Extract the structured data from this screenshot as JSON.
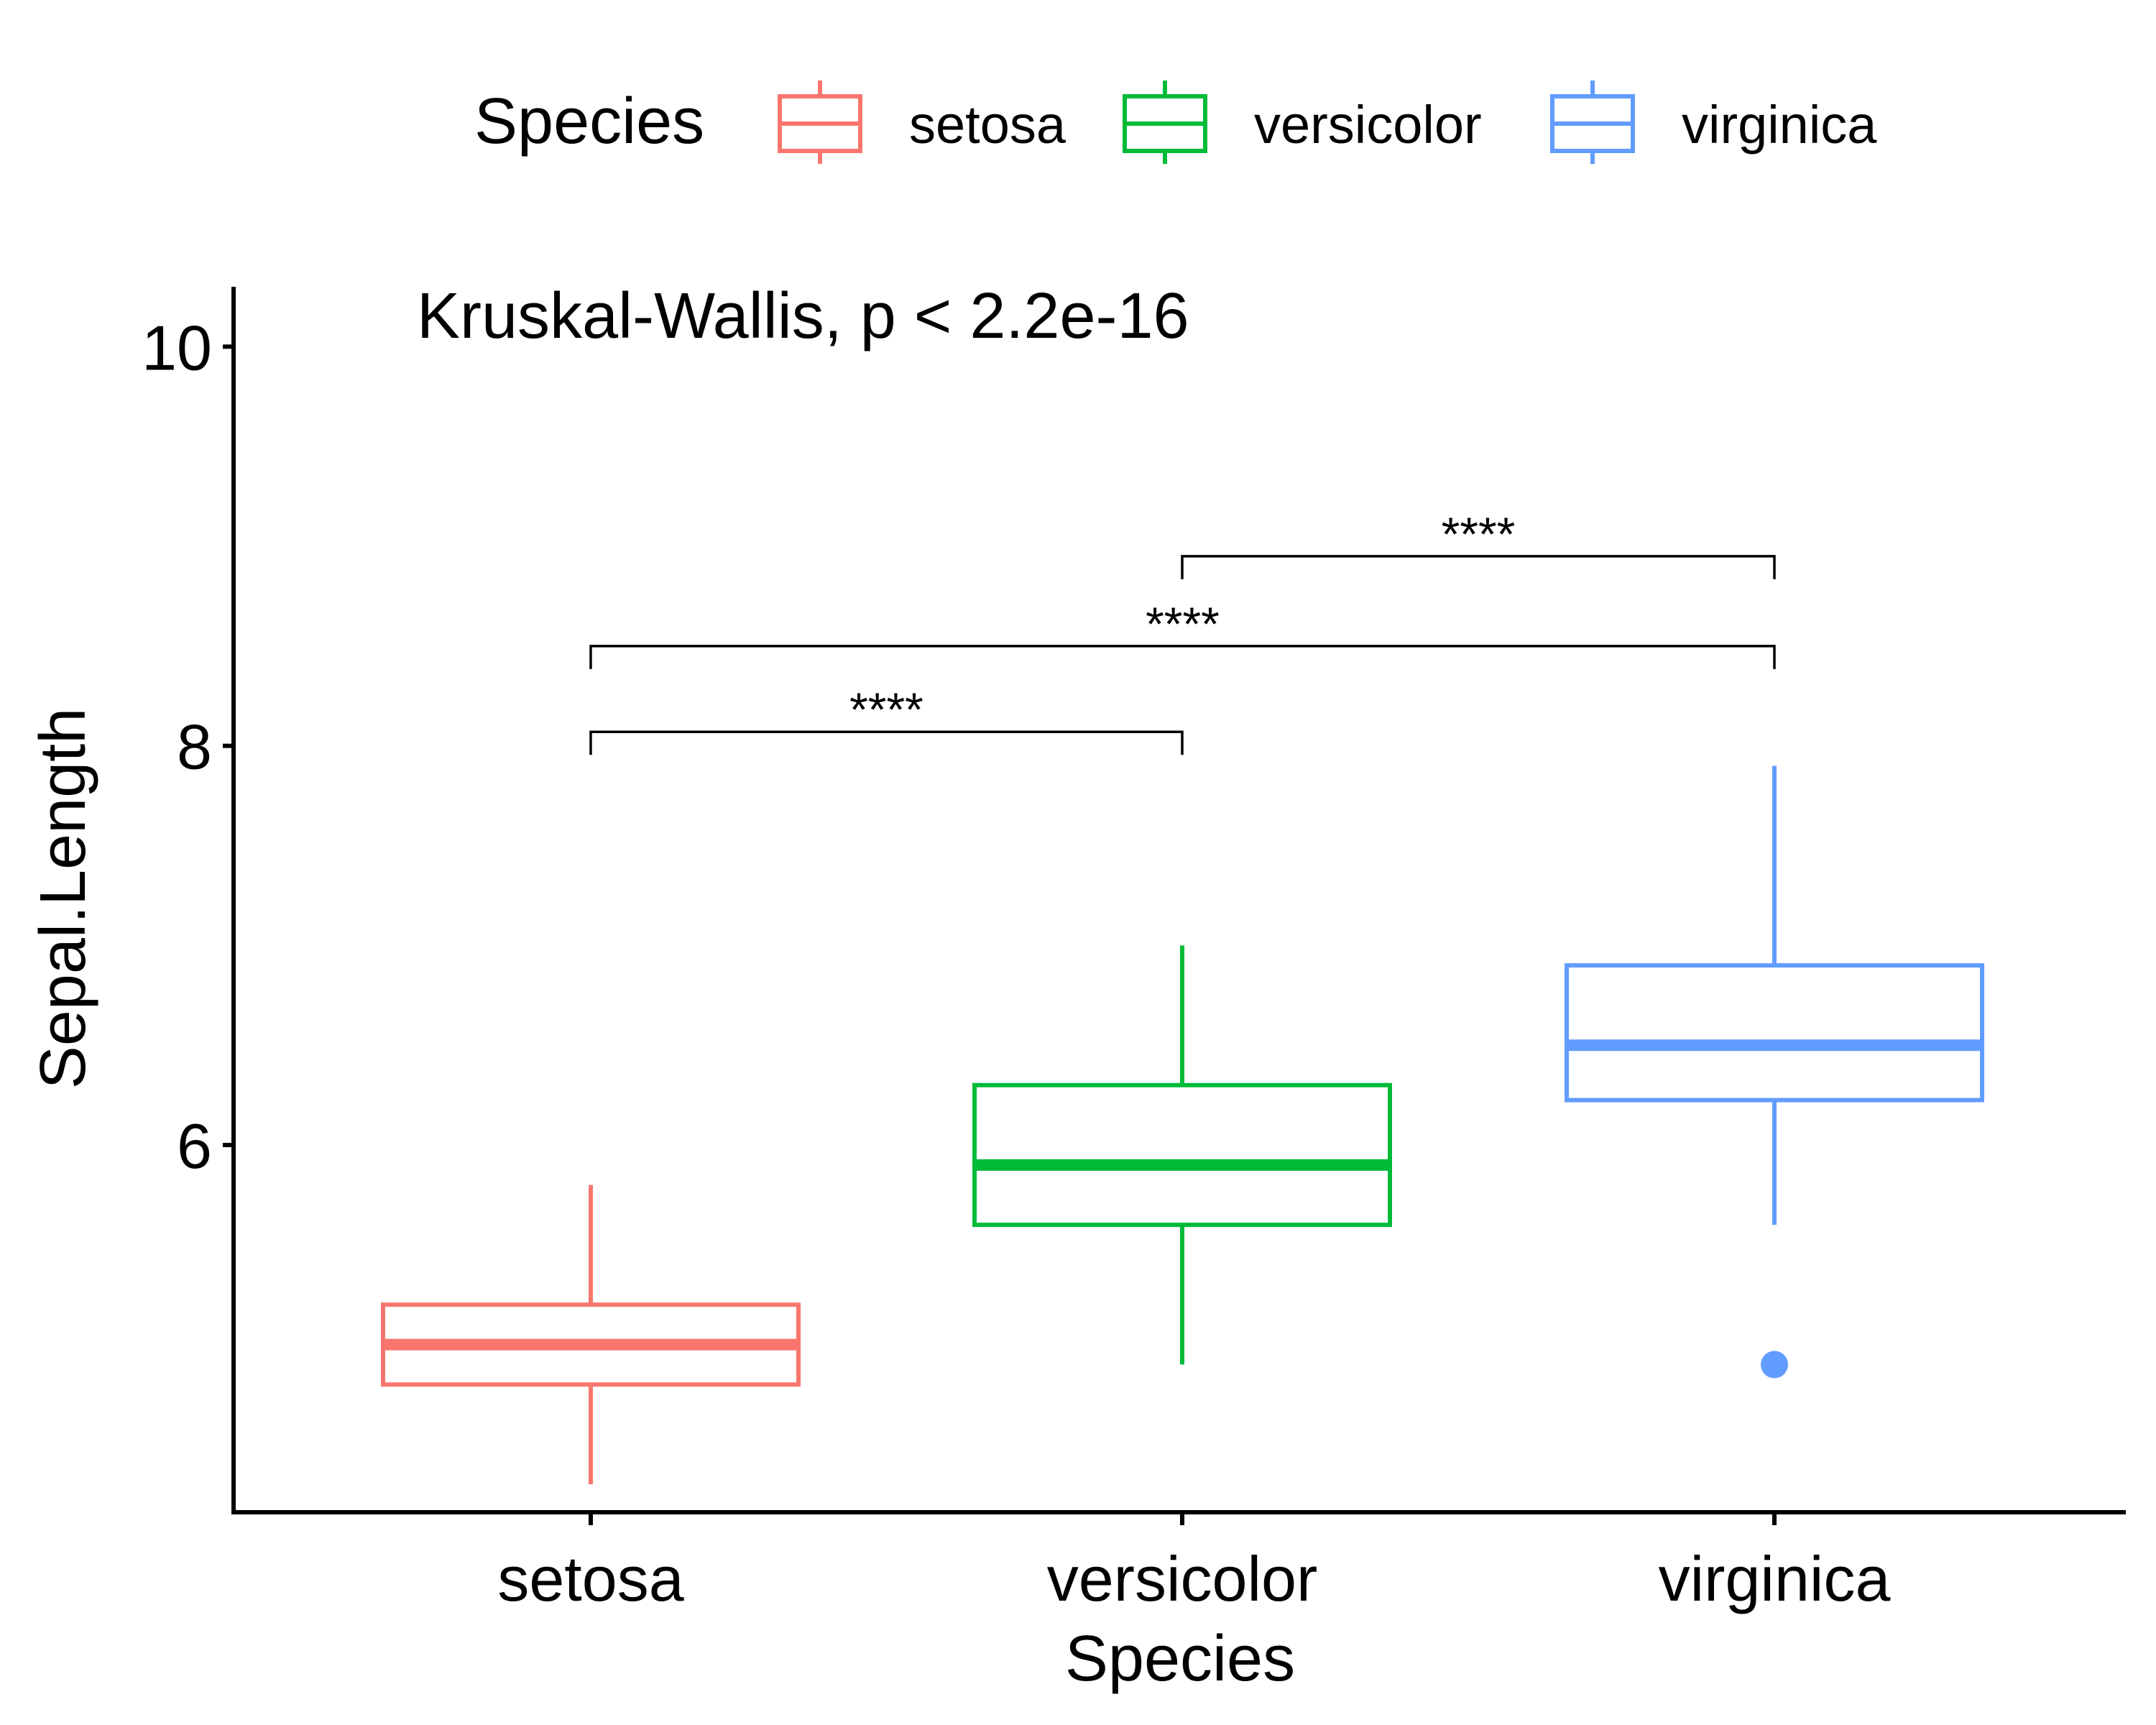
{
  "chart_data": {
    "type": "box",
    "xlabel": "Species",
    "ylabel": "Sepal.Length",
    "categories": [
      "setosa",
      "versicolor",
      "virginica"
    ],
    "y_ticks": [
      6,
      8,
      10
    ],
    "ylim": [
      4.16,
      10.3
    ],
    "annotation": "Kruskal-Wallis, p < 2.2e-16",
    "legend": {
      "title": "Species",
      "position": "top",
      "entries": [
        "setosa",
        "versicolor",
        "virginica"
      ]
    },
    "series": [
      {
        "name": "setosa",
        "color": "#F8766D",
        "min": 4.3,
        "q1": 4.8,
        "median": 5.0,
        "q3": 5.2,
        "max": 5.8,
        "outliers": []
      },
      {
        "name": "versicolor",
        "color": "#00BA38",
        "min": 4.9,
        "q1": 5.6,
        "median": 5.9,
        "q3": 6.3,
        "max": 7.0,
        "outliers": []
      },
      {
        "name": "virginica",
        "color": "#619CFF",
        "min": 5.6,
        "q1": 6.225,
        "median": 6.5,
        "q3": 6.9,
        "max": 7.9,
        "outliers": [
          4.9
        ]
      }
    ],
    "comparisons": [
      {
        "from": "setosa",
        "to": "versicolor",
        "y": 8.07,
        "label": "****"
      },
      {
        "from": "setosa",
        "to": "virginica",
        "y": 8.5,
        "label": "****"
      },
      {
        "from": "versicolor",
        "to": "virginica",
        "y": 8.95,
        "label": "****"
      }
    ]
  }
}
